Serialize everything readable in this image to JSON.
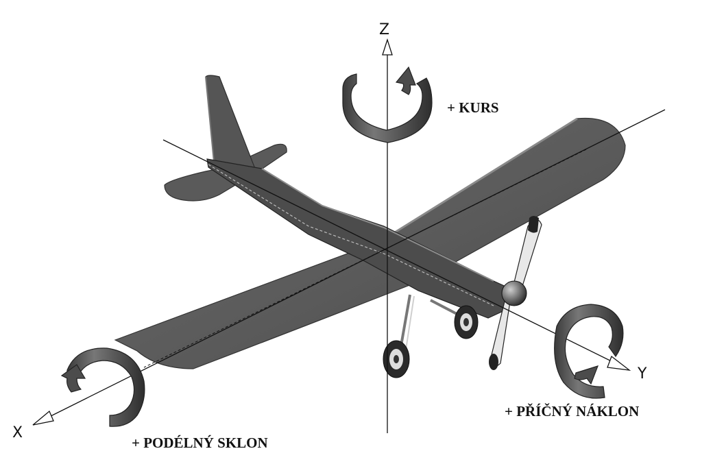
{
  "axes": {
    "x": "X",
    "y": "Y",
    "z": "Z"
  },
  "rotations": {
    "yaw": "+ KURS",
    "roll": "+ PŘÍČNÝ NÁKLON",
    "pitch": "+ PODÉLNÝ SKLON"
  },
  "colors": {
    "background": "#ffffff",
    "aircraft": "#555555",
    "arrow": "#3c3c3c"
  },
  "icons": [
    "curved-rotation-arrow-icon",
    "airplane-illustration"
  ]
}
